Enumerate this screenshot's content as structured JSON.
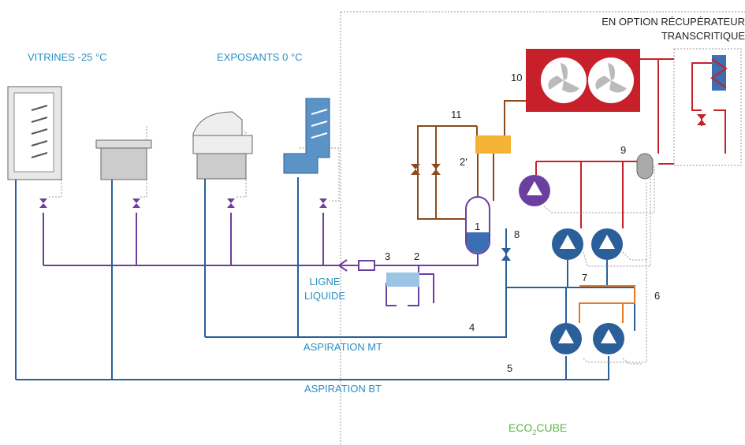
{
  "labels": {
    "vitrines": "VITRINES -25 °C",
    "exposants": "EXPOSANTS 0 °C",
    "option": [
      "EN OPTION RÉCUPÉRATEUR",
      "TRANSCRITIQUE"
    ],
    "ligne_liquide": [
      "LIGNE",
      "LIQUIDE"
    ],
    "aspiration_mt": "ASPIRATION MT",
    "aspiration_bt": "ASPIRATION BT",
    "brand": {
      "prefix": "ECO",
      "subscript": "2",
      "suffix": "CUBE"
    }
  },
  "callouts": [
    "1",
    "2",
    "2'",
    "3",
    "4",
    "5",
    "6",
    "7",
    "8",
    "9",
    "10",
    "11"
  ]
}
